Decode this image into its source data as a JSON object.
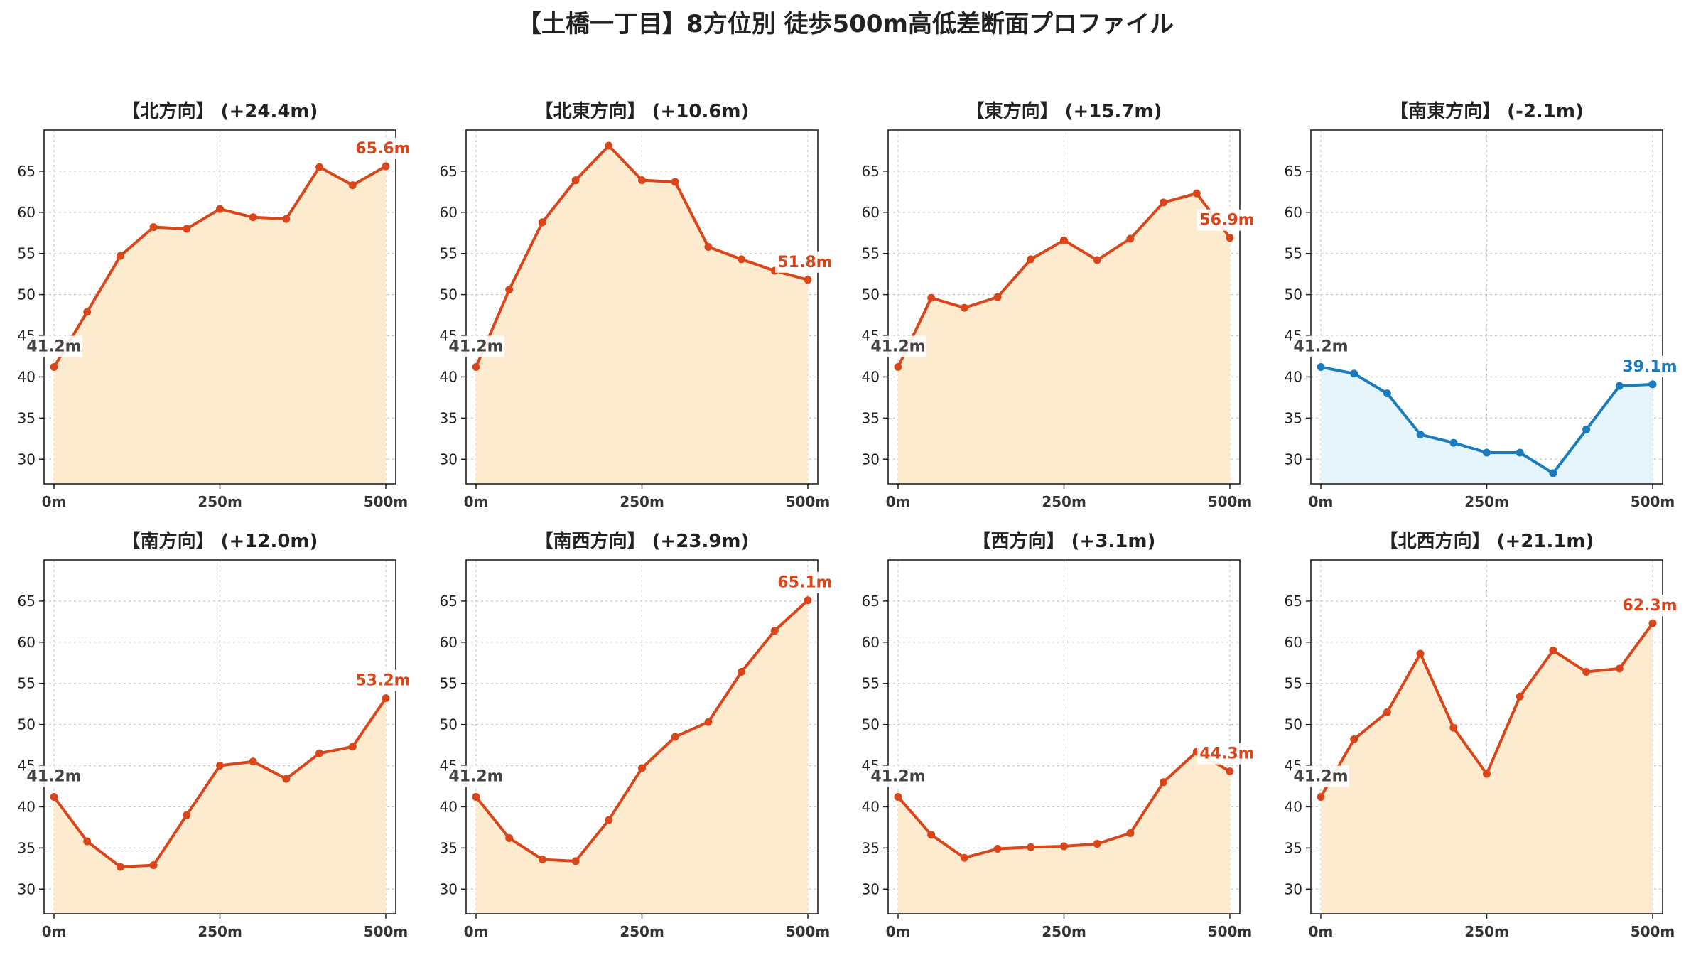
{
  "title": "【土橋一丁目】8方位別 徒歩500m高低差断面プロファイル",
  "colors": {
    "up": "#d9461a",
    "up_fill": "#fdebd0",
    "down": "#1a7bbd",
    "down_fill": "#e6f4fb",
    "start_label": "#444444"
  },
  "chart_data": [
    {
      "type": "area",
      "title": "【北方向】 (+24.4m)",
      "trend": "up",
      "x": [
        0,
        50,
        100,
        150,
        200,
        250,
        300,
        350,
        400,
        450,
        500
      ],
      "values": [
        41.2,
        47.9,
        54.7,
        58.2,
        58.0,
        60.4,
        59.4,
        59.2,
        65.5,
        63.3,
        65.6
      ],
      "start_label": "41.2m",
      "end_label": "65.6m",
      "xticks": [
        "0m",
        "250m",
        "500m"
      ],
      "yticks": [
        30,
        35,
        40,
        45,
        50,
        55,
        60,
        65
      ],
      "ylim": [
        27,
        70
      ],
      "xlim": [
        -15,
        515
      ],
      "grid": true
    },
    {
      "type": "area",
      "title": "【北東方向】 (+10.6m)",
      "trend": "up",
      "x": [
        0,
        50,
        100,
        150,
        200,
        250,
        300,
        350,
        400,
        450,
        500
      ],
      "values": [
        41.2,
        50.6,
        58.8,
        63.9,
        68.1,
        63.9,
        63.7,
        55.8,
        54.3,
        52.9,
        51.8
      ],
      "start_label": "41.2m",
      "end_label": "51.8m",
      "xticks": [
        "0m",
        "250m",
        "500m"
      ],
      "yticks": [
        30,
        35,
        40,
        45,
        50,
        55,
        60,
        65
      ],
      "ylim": [
        27,
        70
      ],
      "xlim": [
        -15,
        515
      ],
      "grid": true
    },
    {
      "type": "area",
      "title": "【東方向】 (+15.7m)",
      "trend": "up",
      "x": [
        0,
        50,
        100,
        150,
        200,
        250,
        300,
        350,
        400,
        450,
        500
      ],
      "values": [
        41.2,
        49.6,
        48.4,
        49.7,
        54.3,
        56.6,
        54.2,
        56.8,
        61.2,
        62.3,
        56.9
      ],
      "start_label": "41.2m",
      "end_label": "56.9m",
      "xticks": [
        "0m",
        "250m",
        "500m"
      ],
      "yticks": [
        30,
        35,
        40,
        45,
        50,
        55,
        60,
        65
      ],
      "ylim": [
        27,
        70
      ],
      "xlim": [
        -15,
        515
      ],
      "grid": true
    },
    {
      "type": "area",
      "title": "【南東方向】 (-2.1m)",
      "trend": "down",
      "x": [
        0,
        50,
        100,
        150,
        200,
        250,
        300,
        350,
        400,
        450,
        500
      ],
      "values": [
        41.2,
        40.4,
        38.0,
        33.0,
        32.0,
        30.8,
        30.8,
        28.3,
        33.6,
        38.9,
        39.1
      ],
      "start_label": "41.2m",
      "end_label": "39.1m",
      "xticks": [
        "0m",
        "250m",
        "500m"
      ],
      "yticks": [
        30,
        35,
        40,
        45,
        50,
        55,
        60,
        65
      ],
      "ylim": [
        27,
        70
      ],
      "xlim": [
        -15,
        515
      ],
      "grid": true
    },
    {
      "type": "area",
      "title": "【南方向】 (+12.0m)",
      "trend": "up",
      "x": [
        0,
        50,
        100,
        150,
        200,
        250,
        300,
        350,
        400,
        450,
        500
      ],
      "values": [
        41.2,
        35.8,
        32.7,
        32.9,
        39.0,
        45.0,
        45.5,
        43.4,
        46.5,
        47.3,
        53.2
      ],
      "start_label": "41.2m",
      "end_label": "53.2m",
      "xticks": [
        "0m",
        "250m",
        "500m"
      ],
      "yticks": [
        30,
        35,
        40,
        45,
        50,
        55,
        60,
        65
      ],
      "ylim": [
        27,
        70
      ],
      "xlim": [
        -15,
        515
      ],
      "grid": true
    },
    {
      "type": "area",
      "title": "【南西方向】 (+23.9m)",
      "trend": "up",
      "x": [
        0,
        50,
        100,
        150,
        200,
        250,
        300,
        350,
        400,
        450,
        500
      ],
      "values": [
        41.2,
        36.2,
        33.6,
        33.4,
        38.4,
        44.7,
        48.5,
        50.3,
        56.4,
        61.4,
        65.1
      ],
      "start_label": "41.2m",
      "end_label": "65.1m",
      "xticks": [
        "0m",
        "250m",
        "500m"
      ],
      "yticks": [
        30,
        35,
        40,
        45,
        50,
        55,
        60,
        65
      ],
      "ylim": [
        27,
        70
      ],
      "xlim": [
        -15,
        515
      ],
      "grid": true
    },
    {
      "type": "area",
      "title": "【西方向】 (+3.1m)",
      "trend": "up",
      "x": [
        0,
        50,
        100,
        150,
        200,
        250,
        300,
        350,
        400,
        450,
        500
      ],
      "values": [
        41.2,
        36.6,
        33.8,
        34.9,
        35.1,
        35.2,
        35.5,
        36.8,
        43.0,
        46.7,
        44.3
      ],
      "start_label": "41.2m",
      "end_label": "44.3m",
      "xticks": [
        "0m",
        "250m",
        "500m"
      ],
      "yticks": [
        30,
        35,
        40,
        45,
        50,
        55,
        60,
        65
      ],
      "ylim": [
        27,
        70
      ],
      "xlim": [
        -15,
        515
      ],
      "grid": true
    },
    {
      "type": "area",
      "title": "【北西方向】 (+21.1m)",
      "trend": "up",
      "x": [
        0,
        50,
        100,
        150,
        200,
        250,
        300,
        350,
        400,
        450,
        500
      ],
      "values": [
        41.2,
        48.2,
        51.5,
        58.6,
        49.6,
        44.0,
        53.4,
        59.0,
        56.4,
        56.8,
        62.3
      ],
      "start_label": "41.2m",
      "end_label": "62.3m",
      "xticks": [
        "0m",
        "250m",
        "500m"
      ],
      "yticks": [
        30,
        35,
        40,
        45,
        50,
        55,
        60,
        65
      ],
      "ylim": [
        27,
        70
      ],
      "xlim": [
        -15,
        515
      ],
      "grid": true
    }
  ]
}
